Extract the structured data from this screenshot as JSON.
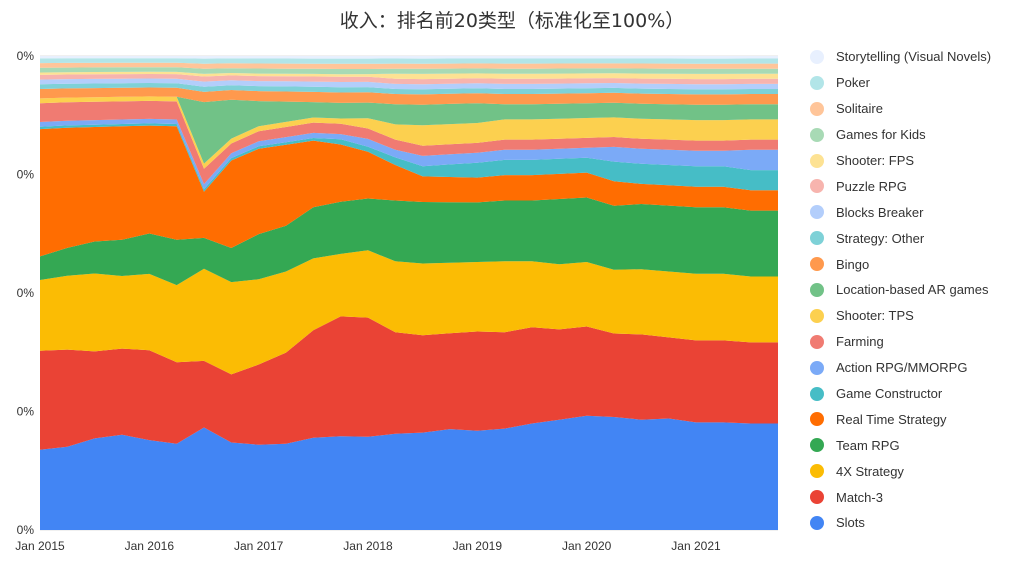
{
  "chart_data": {
    "type": "area",
    "stacked": true,
    "normalized": true,
    "title": "收入：排名前20类型（标准化至100%）",
    "y_tick_labels": [
      "0%",
      "0%",
      "0%",
      "0%",
      "0%"
    ],
    "x_tick_labels": [
      "Jan 2015",
      "Jan 2016",
      "Jan 2017",
      "Jan 2018",
      "Jan 2019",
      "Jan 2020",
      "Jan 2021"
    ],
    "x": [
      "2015-01",
      "2015-04",
      "2015-07",
      "2015-10",
      "2016-01",
      "2016-04",
      "2016-07",
      "2016-10",
      "2017-01",
      "2017-04",
      "2017-07",
      "2017-10",
      "2018-01",
      "2018-04",
      "2018-07",
      "2018-10",
      "2019-01",
      "2019-04",
      "2019-07",
      "2019-10",
      "2020-01",
      "2020-04",
      "2020-07",
      "2020-10",
      "2021-01",
      "2021-04",
      "2021-07",
      "2021-10"
    ],
    "ylim": [
      0,
      100
    ],
    "legend_position": "right",
    "series": [
      {
        "name": "Slots",
        "color": "#4285f4",
        "values": [
          17,
          18,
          20,
          21,
          20,
          19,
          20,
          18,
          17,
          17,
          18,
          18,
          18,
          19,
          19,
          20,
          20,
          20,
          21,
          22,
          23,
          23,
          22,
          22,
          21,
          21,
          21,
          21
        ]
      },
      {
        "name": "Match-3",
        "color": "#ea4335",
        "values": [
          21,
          21,
          19,
          19,
          20,
          18,
          13,
          14,
          16,
          18,
          21,
          23,
          23,
          20,
          19,
          19,
          20,
          19,
          19,
          18,
          18,
          17,
          17,
          16,
          16,
          16,
          16,
          16
        ]
      },
      {
        "name": "4X Strategy",
        "color": "#fbbc04",
        "values": [
          15,
          16,
          17,
          16,
          17,
          17,
          18,
          19,
          17,
          16,
          14,
          12,
          13,
          14,
          14,
          14,
          14,
          14,
          13,
          13,
          13,
          13,
          13,
          13,
          13,
          13,
          13,
          13
        ]
      },
      {
        "name": "Team RPG",
        "color": "#34a853",
        "values": [
          5,
          6,
          7,
          8,
          9,
          10,
          6,
          7,
          9,
          9,
          10,
          10,
          10,
          12,
          12,
          12,
          12,
          12,
          12,
          13,
          13,
          13,
          13,
          13,
          13,
          13,
          13,
          13
        ]
      },
      {
        "name": "Real Time Strategy",
        "color": "#ff6d01",
        "values": [
          27,
          26,
          25,
          25,
          24,
          25,
          9,
          18,
          17,
          16,
          13,
          11,
          9,
          7,
          5,
          5,
          5,
          5,
          5,
          5,
          5,
          5,
          4,
          4,
          4,
          4,
          4,
          4
        ]
      },
      {
        "name": "Game Constructor",
        "color": "#46bdc6",
        "values": [
          0.5,
          0.5,
          0.5,
          0.5,
          0.5,
          0.5,
          0.5,
          0.5,
          0.5,
          0.5,
          0.5,
          1,
          1,
          1.5,
          2,
          2.5,
          3,
          3,
          3,
          3,
          3,
          4,
          4,
          4,
          4,
          4,
          4,
          4
        ]
      },
      {
        "name": "Action RPG/MMORPG",
        "color": "#7baaf7",
        "values": [
          1,
          1,
          1,
          1,
          1,
          1,
          1,
          1,
          1,
          1,
          1,
          1,
          1.5,
          1.5,
          2,
          2,
          2,
          2,
          2,
          2,
          2,
          3,
          3,
          3,
          3,
          3,
          4,
          4
        ]
      },
      {
        "name": "Farming",
        "color": "#f07b72",
        "values": [
          4,
          4,
          4,
          4,
          4,
          4,
          3,
          2,
          2,
          2,
          2,
          2,
          2,
          2,
          2,
          2,
          2,
          2,
          2,
          2,
          2,
          2,
          2,
          2,
          2,
          2,
          2,
          2
        ]
      },
      {
        "name": "Shooter: TPS",
        "color": "#fcd04f",
        "values": [
          1,
          1,
          1,
          1,
          1,
          1,
          1,
          1,
          1,
          1,
          1,
          1,
          2,
          3,
          4,
          4,
          4,
          4,
          4,
          4,
          4,
          4,
          4,
          4,
          4,
          4,
          4,
          4
        ]
      },
      {
        "name": "Location-based AR games",
        "color": "#71c287",
        "values": [
          0,
          0,
          0,
          0,
          0,
          0,
          12,
          8,
          5,
          4,
          3,
          3,
          3,
          4,
          4,
          4,
          4,
          3,
          3,
          3,
          3,
          3,
          3,
          3,
          3,
          3,
          3,
          3
        ]
      },
      {
        "name": "Bingo",
        "color": "#ff994d",
        "values": [
          2,
          2,
          2,
          2,
          2,
          2,
          2,
          2,
          2,
          2,
          2,
          2,
          2,
          2,
          2,
          2,
          2,
          2,
          2,
          2,
          2,
          2,
          2,
          2,
          2,
          2,
          2,
          2
        ]
      },
      {
        "name": "Strategy: Other",
        "color": "#7ed1d7",
        "values": [
          1,
          1,
          1,
          1,
          1,
          1,
          1,
          1,
          1,
          1,
          1,
          1,
          1,
          1,
          1,
          1,
          1,
          1,
          1,
          1,
          1,
          1,
          1,
          1,
          1,
          1,
          1,
          1
        ]
      },
      {
        "name": "Blocks Breaker",
        "color": "#b3cefb",
        "values": [
          1,
          1,
          1,
          1,
          1,
          1,
          1,
          1,
          1,
          1,
          1,
          1,
          1,
          1,
          1,
          1,
          1,
          1,
          1,
          1,
          1,
          1,
          1,
          1,
          1,
          1,
          1,
          1
        ]
      },
      {
        "name": "Puzzle RPG",
        "color": "#f7b4ae",
        "values": [
          1,
          1,
          1,
          1,
          1,
          1,
          1,
          1,
          1,
          1,
          1,
          1,
          1,
          1,
          1,
          1,
          1,
          1,
          1,
          1,
          1,
          1,
          1,
          1,
          1,
          1,
          1,
          1
        ]
      },
      {
        "name": "Shooter: FPS",
        "color": "#fde293",
        "values": [
          0.5,
          0.5,
          0.5,
          0.5,
          0.5,
          0.5,
          0.5,
          0.5,
          0.5,
          0.5,
          0.5,
          0.5,
          0.5,
          1,
          1,
          1,
          1,
          1,
          1,
          1,
          1,
          1,
          1,
          1,
          1,
          1,
          1,
          1
        ]
      },
      {
        "name": "Games for Kids",
        "color": "#a8dab5",
        "values": [
          1,
          1,
          1,
          1,
          1,
          1,
          1,
          1,
          1,
          1,
          1,
          1,
          1,
          1,
          1,
          1,
          1,
          1,
          1,
          1,
          1,
          1,
          1,
          1,
          1,
          1,
          1,
          1
        ]
      },
      {
        "name": "Solitaire",
        "color": "#ffc599",
        "values": [
          1,
          1,
          1,
          1,
          1,
          1,
          1,
          1,
          1,
          1,
          1,
          1,
          1,
          1,
          1,
          1,
          1,
          1,
          1,
          1,
          1,
          1,
          1,
          1,
          1,
          1,
          1,
          1
        ]
      },
      {
        "name": "Poker",
        "color": "#b2e5e8",
        "values": [
          1,
          1,
          1,
          1,
          1,
          1,
          1,
          1,
          1,
          1,
          1,
          1,
          1,
          1,
          1,
          1,
          1,
          1,
          1,
          1,
          1,
          1,
          1,
          1,
          1,
          1,
          1,
          1
        ]
      },
      {
        "name": "Storytelling (Visual Novels)",
        "color": "#e8f0fe",
        "values": [
          0.5,
          0.5,
          0.5,
          0.5,
          0.5,
          0.5,
          0.5,
          0.5,
          0.5,
          0.5,
          0.5,
          0.5,
          0.5,
          0.5,
          0.5,
          0.5,
          0.5,
          0.5,
          0.5,
          0.5,
          0.5,
          0.5,
          0.5,
          0.5,
          0.5,
          0.5,
          0.5,
          0.5
        ]
      }
    ]
  }
}
